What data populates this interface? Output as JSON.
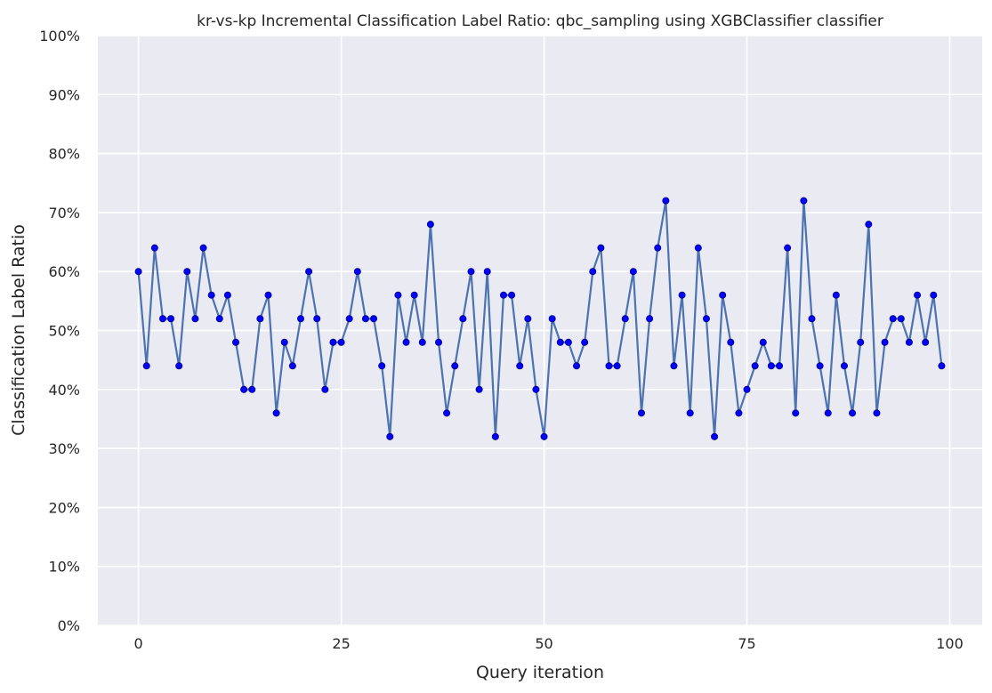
{
  "chart_data": {
    "type": "line",
    "title": "kr-vs-kp Incremental Classification Label Ratio: qbc_sampling using XGBClassifier classifier",
    "xlabel": "Query iteration",
    "ylabel": "Classification Label Ratio",
    "xlim": [
      -5,
      104
    ],
    "ylim": [
      0,
      1
    ],
    "xticks": [
      0,
      25,
      50,
      75,
      100
    ],
    "yticks": [
      0,
      0.1,
      0.2,
      0.3,
      0.4,
      0.5,
      0.6,
      0.7,
      0.8,
      0.9,
      1.0
    ],
    "ytick_labels": [
      "0%",
      "10%",
      "20%",
      "30%",
      "40%",
      "50%",
      "60%",
      "70%",
      "80%",
      "90%",
      "100%"
    ],
    "grid": true,
    "line_color": "#4c72b0",
    "marker_color": "#0000ff",
    "background_color": "#eaeaf2",
    "x": [
      0,
      1,
      2,
      3,
      4,
      5,
      6,
      7,
      8,
      9,
      10,
      11,
      12,
      13,
      14,
      15,
      16,
      17,
      18,
      19,
      20,
      21,
      22,
      23,
      24,
      25,
      26,
      27,
      28,
      29,
      30,
      31,
      32,
      33,
      34,
      35,
      36,
      37,
      38,
      39,
      40,
      41,
      42,
      43,
      44,
      45,
      46,
      47,
      48,
      49,
      50,
      51,
      52,
      53,
      54,
      55,
      56,
      57,
      58,
      59,
      60,
      61,
      62,
      63,
      64,
      65,
      66,
      67,
      68,
      69,
      70,
      71,
      72,
      73,
      74,
      75,
      76,
      77,
      78,
      79,
      80,
      81,
      82,
      83,
      84,
      85,
      86,
      87,
      88,
      89,
      90,
      91,
      92,
      93,
      94,
      95,
      96,
      97,
      98,
      99
    ],
    "values": [
      0.6,
      0.44,
      0.64,
      0.52,
      0.52,
      0.44,
      0.6,
      0.52,
      0.64,
      0.56,
      0.52,
      0.56,
      0.48,
      0.4,
      0.4,
      0.52,
      0.56,
      0.36,
      0.48,
      0.44,
      0.52,
      0.6,
      0.52,
      0.4,
      0.48,
      0.48,
      0.52,
      0.6,
      0.52,
      0.52,
      0.44,
      0.32,
      0.56,
      0.48,
      0.56,
      0.48,
      0.68,
      0.48,
      0.36,
      0.44,
      0.52,
      0.6,
      0.4,
      0.6,
      0.32,
      0.56,
      0.56,
      0.44,
      0.52,
      0.4,
      0.32,
      0.52,
      0.48,
      0.48,
      0.44,
      0.48,
      0.6,
      0.64,
      0.44,
      0.44,
      0.52,
      0.6,
      0.36,
      0.52,
      0.64,
      0.72,
      0.44,
      0.56,
      0.36,
      0.64,
      0.52,
      0.32,
      0.56,
      0.48,
      0.36,
      0.4,
      0.44,
      0.48,
      0.44,
      0.44,
      0.64,
      0.36,
      0.72,
      0.52,
      0.44,
      0.36,
      0.56,
      0.44,
      0.36,
      0.48,
      0.68,
      0.36,
      0.48,
      0.52,
      0.52,
      0.48,
      0.56,
      0.48,
      0.56,
      0.44
    ]
  }
}
